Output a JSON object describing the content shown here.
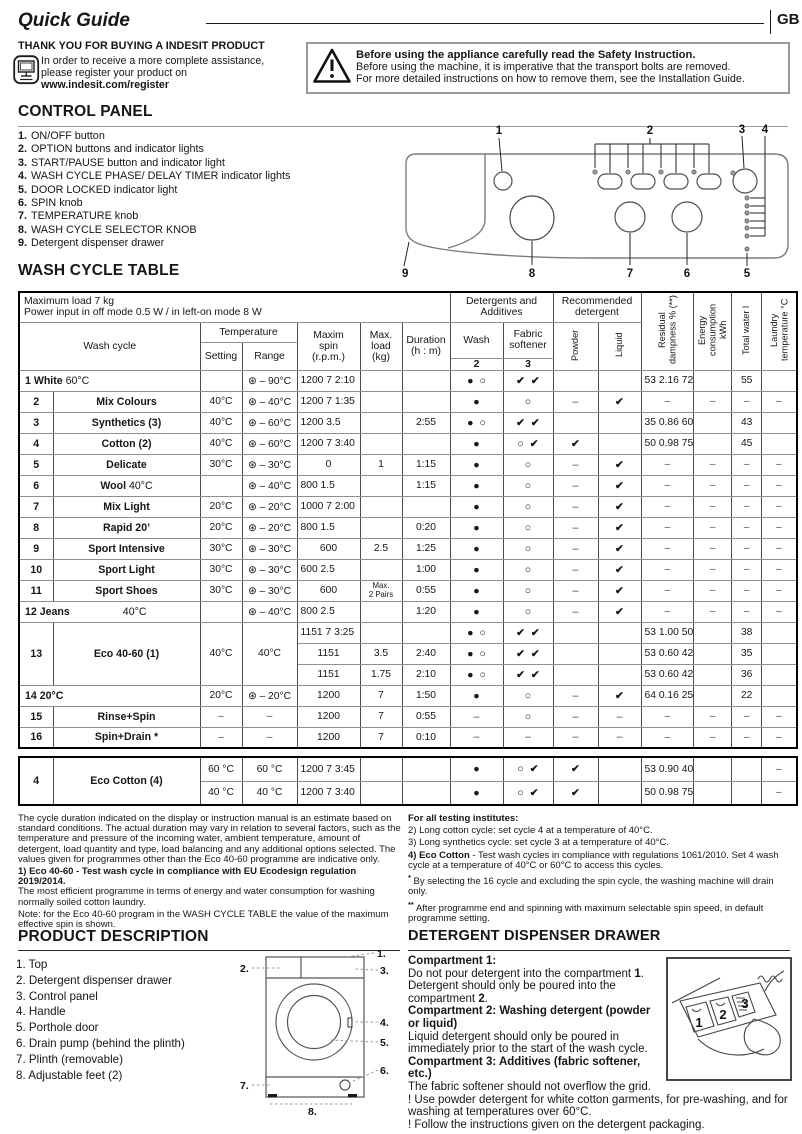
{
  "page": {
    "title": "Quick Guide",
    "lang": "GB"
  },
  "intro": {
    "heading": "THANK YOU FOR BUYING A INDESIT PRODUCT",
    "line1": "In order to receive a more complete assistance,",
    "line2": "please register your product on",
    "register_url": "www.indesit.com/register",
    "icon": "register-computer-icon"
  },
  "warning": {
    "icon": "warning-triangle-icon",
    "bold": "Before using the appliance carefully read the Safety Instruction.",
    "line1": "Before using the machine, it is imperative that the transport bolts are removed.",
    "line2": "For more detailed instructions on how to remove them, see the Installation Guide."
  },
  "control_panel": {
    "heading": "CONTROL PANEL",
    "items": [
      {
        "num": "1.",
        "label": "ON/OFF button"
      },
      {
        "num": "2.",
        "label": "OPTION buttons and indicator lights"
      },
      {
        "num": "3.",
        "label": "START/PAUSE button and indicator light"
      },
      {
        "num": "4.",
        "label": "WASH CYCLE PHASE/ DELAY TIMER indicator lights"
      },
      {
        "num": "5.",
        "label": "DOOR LOCKED indicator light"
      },
      {
        "num": "6.",
        "label": "SPIN knob"
      },
      {
        "num": "7.",
        "label": "TEMPERATURE knob"
      },
      {
        "num": "8.",
        "label": "WASH CYCLE SELECTOR KNOB"
      },
      {
        "num": "9.",
        "label": "Detergent dispenser drawer"
      }
    ],
    "diagram_numbers": [
      "1",
      "2",
      "3",
      "4",
      "5",
      "6",
      "7",
      "8",
      "9"
    ]
  },
  "wash_table": {
    "heading": "WASH CYCLE TABLE",
    "info": "Maximum load 7 kg\nPower input in off  mode 0.5 W / in left-on mode 8 W",
    "headers": {
      "wash_cycle": "Wash cycle",
      "temperature": "Temperature",
      "setting": "Setting",
      "range": "Range",
      "spin": "Maxim\nspin\n(r.p.m.)",
      "load": "Max.\nload\n(kg)",
      "duration": "Duration\n(h : m)",
      "detergents": "Detergents and\nAdditives",
      "wash": "Wash",
      "wash_num": "2",
      "fabric": "Fabric\nsoftener",
      "fabric_num": "3",
      "recommended": "Recommended\ndetergent",
      "powder": "Powder",
      "liquid": "Liquid",
      "residual": "Residual dampness % (**)",
      "energy": "Energy consumption kWh",
      "water": "Total water l",
      "laundry": "Laundry temperature °C"
    },
    "rows": [
      {
        "num": "1",
        "name": "White",
        "nameTemp": "60°C",
        "merged": "left",
        "cells": [
          "",
          "⊛ – 90°C",
          "1200 7 2:10",
          "",
          "",
          "●  ○",
          "✔  ✔",
          "",
          "",
          "53 2.16 72",
          "",
          "55",
          ""
        ],
        "ovf": [
          2,
          9
        ]
      },
      {
        "num": "2",
        "name": "Mix Colours",
        "cells": [
          "40°C",
          "⊛ – 40°C",
          "1200 7 1:35",
          "",
          "",
          "●",
          "○",
          "–",
          "✔",
          "–",
          "–",
          "–",
          "–"
        ],
        "ovf": [
          2
        ]
      },
      {
        "num": "3",
        "name": "Synthetics (3)",
        "cells": [
          "40°C",
          "⊛ – 60°C",
          "1200 3.5",
          "",
          "2:55",
          "●  ○",
          "✔  ✔",
          "",
          "",
          "35 0.86 60",
          "",
          "43",
          ""
        ],
        "ovf": [
          2,
          9
        ]
      },
      {
        "num": "4",
        "name": "Cotton (2)",
        "cells": [
          "40°C",
          "⊛ – 60°C",
          "1200 7 3:40",
          "",
          "",
          "●",
          "○  ✔",
          "✔",
          "",
          "50 0.98 75",
          "",
          "45",
          ""
        ],
        "ovf": [
          2,
          9
        ]
      },
      {
        "num": "5",
        "name": "Delicate",
        "cells": [
          "30°C",
          "⊛ – 30°C",
          "0",
          "1",
          "1:15",
          "●",
          "○",
          "–",
          "✔",
          "–",
          "–",
          "–",
          "–"
        ]
      },
      {
        "num": "6",
        "name": "Wool",
        "nameTemp": "40°C",
        "cells": [
          "",
          "⊛ – 40°C",
          "800 1.5",
          "",
          "1:15",
          "●",
          "○",
          "–",
          "✔",
          "–",
          "–",
          "–",
          "–"
        ],
        "ovf": [
          2
        ]
      },
      {
        "num": "7",
        "name": "Mix Light",
        "cells": [
          "20°C",
          "⊛ – 20°C",
          "1000 7 2:00",
          "",
          "",
          "●",
          "○",
          "–",
          "✔",
          "–",
          "–",
          "–",
          "–"
        ],
        "ovf": [
          2
        ]
      },
      {
        "num": "8",
        "name": "Rapid 20’",
        "cells": [
          "20°C",
          "⊛ – 20°C",
          "800 1.5",
          "",
          "0:20",
          "●",
          "○",
          "–",
          "✔",
          "–",
          "–",
          "–",
          "–"
        ],
        "ovf": [
          2
        ]
      },
      {
        "num": "9",
        "name": "Sport Intensive",
        "cells": [
          "30°C",
          "⊛ – 30°C",
          "600",
          "2.5",
          "1:25",
          "●",
          "○",
          "–",
          "✔",
          "–",
          "–",
          "–",
          "–"
        ]
      },
      {
        "num": "10",
        "name": "Sport Light",
        "cells": [
          "30°C",
          "⊛ – 30°C",
          "600 2.5",
          "",
          "1:00",
          "●",
          "○",
          "–",
          "✔",
          "–",
          "–",
          "–",
          "–"
        ],
        "ovf": [
          2
        ]
      },
      {
        "num": "11",
        "name": "Sport Shoes",
        "cells": [
          "30°C",
          "⊛ – 30°C",
          "600",
          "Max.\n2 Pairs",
          "0:55",
          "●",
          "○",
          "–",
          "✔",
          "–",
          "–",
          "–",
          "–"
        ]
      },
      {
        "num": "12",
        "name": "Jeans",
        "nameTemp": "40°C",
        "merged": "flex",
        "cells": [
          "",
          "⊛ – 40°C",
          "800 2.5",
          "",
          "1:20",
          "●",
          "○",
          "–",
          "✔",
          "–",
          "–",
          "–",
          "–"
        ],
        "ovf": [
          2
        ]
      },
      {
        "num": "13",
        "name": "Eco 40-60 (1)",
        "setting": "40°C",
        "range": "40°C",
        "sub": [
          {
            "cells": [
              "1151 7 3:25",
              "",
              "",
              "●  ○",
              "✔  ✔",
              "",
              "",
              "53 1.00 50",
              "",
              "38",
              ""
            ],
            "ovf": [
              0,
              7
            ]
          },
          {
            "cells": [
              "1151",
              "3.5",
              "2:40",
              "●  ○",
              "✔  ✔",
              "",
              "",
              "53 0.60 42",
              "",
              "35",
              ""
            ],
            "ovf": [
              7
            ]
          },
          {
            "cells": [
              "1151",
              "1.75",
              "2:10",
              "●  ○",
              "✔  ✔",
              "",
              "",
              "53 0.60 42",
              "",
              "36",
              ""
            ],
            "ovf": [
              7
            ]
          }
        ]
      },
      {
        "num": "14",
        "name": "20°C",
        "merged": "left",
        "cells": [
          "20°C",
          "⊛ – 20°C",
          "1200",
          "7",
          "1:50",
          "●",
          "○",
          "–",
          "✔",
          "64 0.16 25",
          "",
          "22",
          ""
        ],
        "ovf": [
          9
        ]
      },
      {
        "num": "15",
        "name": "Rinse+Spin",
        "cells": [
          "–",
          "–",
          "1200",
          "7",
          "0:55",
          "–",
          "○",
          "–",
          "–",
          "–",
          "–",
          "–",
          "–"
        ]
      },
      {
        "num": "16",
        "name": "Spin+Drain *",
        "cells": [
          "–",
          "–",
          "1200",
          "7",
          "0:10",
          "–",
          "–",
          "–",
          "–",
          "–",
          "–",
          "–",
          "–"
        ]
      }
    ],
    "eco": {
      "num": "4",
      "name": "Eco Cotton (4)",
      "sub": [
        {
          "cells": [
            "60 °C",
            "60 °C",
            "1200 7 3:45",
            "",
            "",
            "●",
            "○  ✔",
            "✔",
            "",
            "53 0.90 40",
            "",
            "",
            "–"
          ],
          "ovf": [
            2,
            9
          ]
        },
        {
          "cells": [
            "40 °C",
            "40 °C",
            "1200 7 3:40",
            "",
            "",
            "●",
            "○  ✔",
            "✔",
            "",
            "50 0.98 75",
            "",
            "",
            "–"
          ],
          "ovf": [
            2,
            9
          ]
        }
      ]
    }
  },
  "footnotes": {
    "left": [
      {
        "text": "The cycle duration indicated on the display or instruction manual is an estimate based on standard conditions. The actual duration may vary in relation to several factors, such as the temperature and pressure of the incoming water, ambient temperature, amount of detergent, load quantity and type, load balancing and any additional options selected. The values given for programmes other than the Eco 40-60 programme are indicative only."
      },
      {
        "bold": "1) Eco 40-60 - Test wash cycle in compliance with EU Ecodesign regulation 2019/2014.",
        "block": true,
        "text": "The most efficient programme in terms of energy and water consumption for washing normally soiled cotton laundry."
      },
      {
        "text": "Note: for the Eco 40-60 program in the WASH CYCLE TABLE the value of the maximum effective spin is shown."
      }
    ],
    "right": [
      {
        "bold": "For all testing institutes:",
        "block": true,
        "text": ""
      },
      {
        "text": "2)  Long cotton cycle: set cycle 4 at a temperature of 40°C."
      },
      {
        "text": "3)  Long synthetics cycle: set cycle 3 at a temperature of 40°C."
      },
      {
        "bold": "4) Eco Cotton",
        "text": " -  Test wash cycles in compliance with regulations 1061/2010. Set 4 wash cycle at a temperature of 40°C or 60°C to access this cycles."
      },
      {
        "sup": "*",
        "text": " By selecting the 16 cycle and excluding the spin cycle, the washing machine will drain only."
      },
      {
        "sup": "**",
        "text": " After programme end and spinning with maximum selectable spin speed, in default programme setting."
      }
    ]
  },
  "product": {
    "heading": "PRODUCT DESCRIPTION",
    "items": [
      {
        "num": "1.",
        "label": "Top"
      },
      {
        "num": "2.",
        "label": "Detergent dispenser drawer"
      },
      {
        "num": "3.",
        "label": "Control panel"
      },
      {
        "num": "4.",
        "label": "Handle"
      },
      {
        "num": "5.",
        "label": "Porthole door"
      },
      {
        "num": "6.",
        "label": "Drain pump (behind the plinth)"
      },
      {
        "num": "7.",
        "label": "Plinth (removable)"
      },
      {
        "num": "8.",
        "label": "Adjustable feet (2)"
      }
    ],
    "diagram_numbers": [
      "1.",
      "2.",
      "3.",
      "4.",
      "5.",
      "6.",
      "7.",
      "8."
    ]
  },
  "dispenser": {
    "heading": "DETERGENT DISPENSER DRAWER",
    "paras": [
      {
        "segs": [
          [
            "Compartment 1:",
            1
          ]
        ]
      },
      {
        "segs": [
          [
            "Do not pour detergent into the compartment ",
            0
          ],
          [
            "1",
            1
          ],
          [
            ". Detergent should only be poured into the compartment ",
            0
          ],
          [
            "2",
            1
          ],
          [
            ".",
            0
          ]
        ]
      },
      {
        "segs": [
          [
            "Compartment 2: Washing detergent (powder or liquid)",
            1
          ]
        ]
      },
      {
        "segs": [
          [
            "Liquid detergent should only be poured in immediately prior to the start of the wash cycle.",
            0
          ]
        ]
      },
      {
        "segs": [
          [
            "Compartment 3: Additives (fabric softener, etc.)",
            1
          ]
        ]
      },
      {
        "segs": [
          [
            "The fabric softener should not overflow the grid.",
            0
          ]
        ]
      },
      {
        "segs": [
          [
            "! Use powder detergent for white cotton garments, for pre-washing, and for washing at temperatures over 60°C.",
            0
          ]
        ]
      },
      {
        "segs": [
          [
            "! Follow the instructions given on the detergent packaging.",
            0
          ]
        ]
      }
    ],
    "diagram_numbers": [
      "1",
      "2",
      "3"
    ]
  }
}
